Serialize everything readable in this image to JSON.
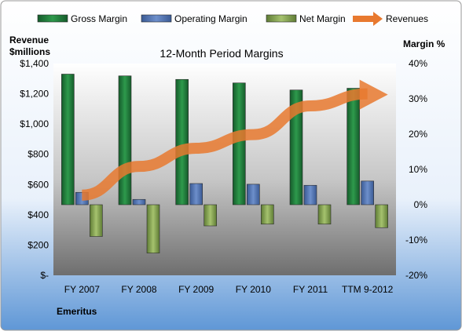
{
  "chart_data": {
    "type": "bar",
    "title": "12-Month Period Margins",
    "company": "Emeritus",
    "categories": [
      "FY 2007",
      "FY 2008",
      "FY 2009",
      "FY 2010",
      "FY 2011",
      "TTM 9-2012"
    ],
    "y_left": {
      "label_line1": "Revenue",
      "label_line2": "$millions",
      "range": [
        0,
        1400
      ],
      "ticks": [
        "$-",
        "$200",
        "$400",
        "$600",
        "$800",
        "$1,000",
        "$1,200",
        "$1,400"
      ]
    },
    "y_right": {
      "label": "Margin %",
      "range": [
        -20,
        40
      ],
      "ticks": [
        "-20%",
        "-10%",
        "0%",
        "10%",
        "20%",
        "30%",
        "40%"
      ]
    },
    "series": [
      {
        "name": "Gross Margin",
        "axis": "right",
        "kind": "bar",
        "color": "#1F7A3C",
        "values": [
          37,
          36.5,
          35.5,
          34.5,
          32.5,
          33
        ]
      },
      {
        "name": "Operating Margin",
        "axis": "right",
        "kind": "bar",
        "color": "#4A6FB0",
        "values": [
          3.5,
          1.5,
          6,
          5.8,
          5.5,
          6.7
        ]
      },
      {
        "name": "Net Margin",
        "axis": "right",
        "kind": "bar",
        "color": "#7FA04C",
        "values": [
          -9,
          -13.7,
          -6,
          -5.5,
          -5.5,
          -6.5
        ]
      },
      {
        "name": "Revenues",
        "axis": "left",
        "kind": "arrow-line",
        "color": "#E8792F",
        "values": [
          530,
          720,
          840,
          930,
          1120,
          1200
        ]
      }
    ],
    "legend_position": "top",
    "grid": false
  }
}
